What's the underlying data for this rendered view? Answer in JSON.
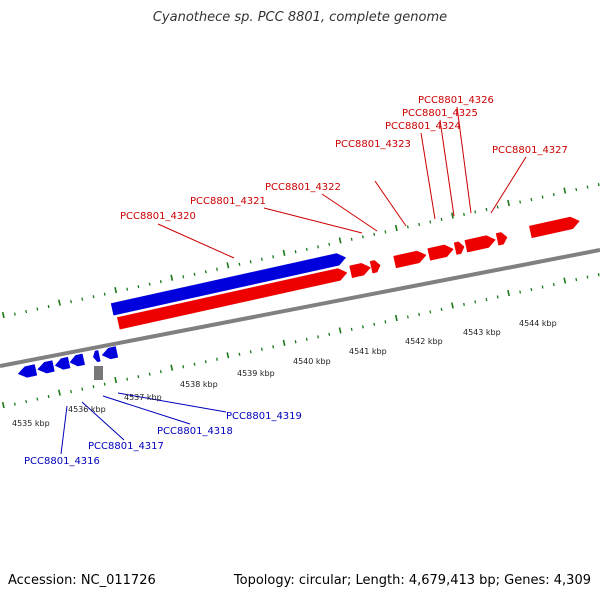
{
  "title": "Cyanothece sp. PCC 8801, complete genome",
  "footer": {
    "accession": "Accession: NC_011726",
    "stats": "Topology: circular; Length: 4,679,413 bp; Genes: 4,309"
  },
  "colors": {
    "forward_gene": "#ee0000",
    "reverse_gene": "#0000dd",
    "backbone": "#808080",
    "tick": "#1a7a1a",
    "forward_label": "#cc0000",
    "reverse_label": "#0000bb",
    "unknown_feature": "#777777"
  },
  "scale_labels": [
    "4535 kbp",
    "4536 kbp",
    "4537 kbp",
    "4538 kbp",
    "4539 kbp",
    "4540 kbp",
    "4541 kbp",
    "4542 kbp",
    "4543 kbp",
    "4544 kbp"
  ],
  "forward_genes": [
    {
      "label": "PCC8801_4320"
    },
    {
      "label": "PCC8801_4321"
    },
    {
      "label": "PCC8801_4322"
    },
    {
      "label": "PCC8801_4323"
    },
    {
      "label": "PCC8801_4324"
    },
    {
      "label": "PCC8801_4325"
    },
    {
      "label": "PCC8801_4326"
    },
    {
      "label": "PCC8801_4327"
    }
  ],
  "reverse_genes": [
    {
      "label": "PCC8801_4316"
    },
    {
      "label": "PCC8801_4317"
    },
    {
      "label": "PCC8801_4318"
    },
    {
      "label": "PCC8801_4319"
    }
  ]
}
